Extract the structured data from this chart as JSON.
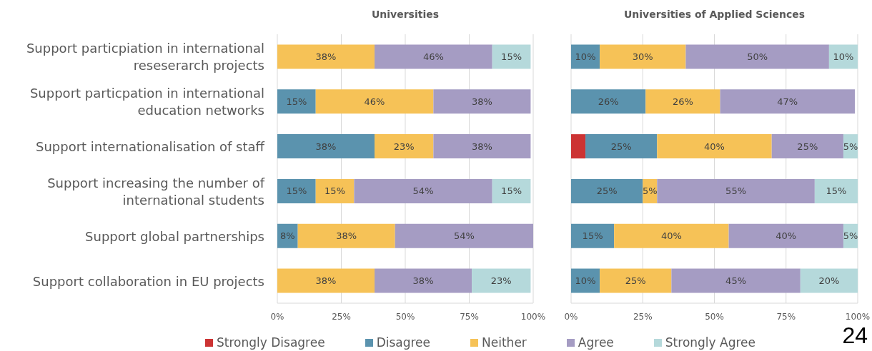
{
  "chart_data": [
    {
      "type": "bar",
      "orientation": "horizontal",
      "stacked": true,
      "title": "Universities",
      "categories": [
        "Support particpiation in international reseserarch projects",
        "Support particpation in international education networks",
        "Support internationalisation of staff",
        "Support increasing the number of international students",
        "Support global partnerships",
        "Support collaboration in EU projects"
      ],
      "series": [
        {
          "color": "#5b93ae",
          "values": [
            null,
            15,
            38,
            15,
            8,
            null
          ],
          "value_labels": [
            null,
            "15%",
            "38%",
            "15%",
            "8%",
            null
          ]
        },
        {
          "color": "#f6c257",
          "values": [
            38,
            46,
            23,
            15,
            38,
            38
          ],
          "value_labels": [
            "38%",
            "46%",
            "23%",
            "15%",
            "38%",
            "38%"
          ]
        },
        {
          "color": "#a59cc3",
          "values": [
            46,
            38,
            38,
            54,
            54,
            38
          ],
          "value_labels": [
            "46%",
            "38%",
            "38%",
            "54%",
            "54%",
            "38%"
          ]
        },
        {
          "color": "#b5d9db",
          "values": [
            15,
            null,
            null,
            15,
            null,
            23
          ],
          "value_labels": [
            "15%",
            null,
            null,
            "15%",
            null,
            "23%"
          ]
        }
      ],
      "xlim": [
        0,
        100
      ],
      "xticks": [
        {
          "value": 0,
          "label": "0%"
        },
        {
          "value": 25,
          "label": "25%"
        },
        {
          "value": 50,
          "label": "50%"
        },
        {
          "value": 75,
          "label": "75%"
        },
        {
          "value": 100,
          "label": "100%"
        }
      ],
      "grid": "x"
    },
    {
      "type": "bar",
      "orientation": "horizontal",
      "stacked": true,
      "title": "Universities of Applied Sciences",
      "categories": [
        "Support particpiation in international reseserarch projects",
        "Support particpation in international education networks",
        "Support internationalisation of staff",
        "Support increasing the number of international students",
        "Support global partnerships",
        "Support collaboration in EU projects"
      ],
      "series": [
        {
          "name": "Strongly Disagree",
          "color": "#cc3333",
          "values": [
            null,
            null,
            5,
            null,
            null,
            null
          ]
        },
        {
          "name": "Disagree",
          "color": "#5b93ae",
          "values": [
            10,
            26,
            25,
            25,
            15,
            10
          ],
          "value_labels": [
            "10%",
            "26%",
            "25%",
            "25%",
            "15%",
            "10%"
          ]
        },
        {
          "name": "Neither",
          "color": "#f6c257",
          "values": [
            30,
            26,
            40,
            5,
            40,
            25
          ],
          "value_labels": [
            "30%",
            "26%",
            "40%",
            "5%",
            "40%",
            "25%"
          ]
        },
        {
          "name": "Agree",
          "color": "#a59cc3",
          "values": [
            50,
            47,
            25,
            55,
            40,
            45
          ],
          "value_labels": [
            "50%",
            "47%",
            "25%",
            "55%",
            "40%",
            "45%"
          ]
        },
        {
          "name": "Strongly Agree",
          "color": "#b5d9db",
          "values": [
            10,
            null,
            5,
            15,
            5,
            20
          ],
          "value_labels": [
            "10%",
            null,
            "5%",
            "15%",
            "5%",
            "20%"
          ]
        }
      ],
      "xlim": [
        0,
        100
      ],
      "xticks": [
        {
          "value": 0,
          "label": "0%"
        },
        {
          "value": 25,
          "label": "25%"
        },
        {
          "value": 50,
          "label": "50%"
        },
        {
          "value": 75,
          "label": "75%"
        },
        {
          "value": 100,
          "label": "100%"
        }
      ],
      "grid": "x",
      "tick_labels": "x",
      "legend": "bottom",
      "annotations": [
        "24"
      ]
    }
  ]
}
